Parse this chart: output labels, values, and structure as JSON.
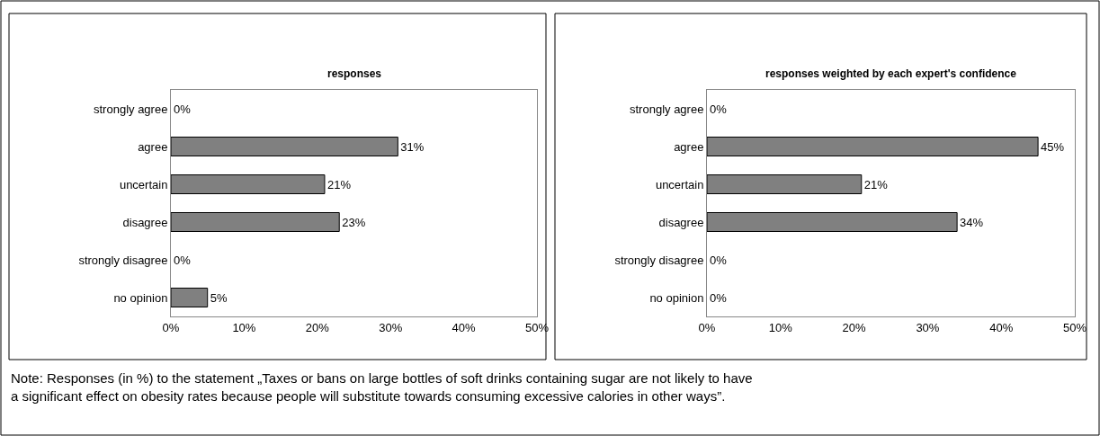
{
  "chart_data": [
    {
      "type": "bar",
      "orientation": "horizontal",
      "title": "responses",
      "categories": [
        "strongly agree",
        "agree",
        "uncertain",
        "disagree",
        "strongly disagree",
        "no opinion"
      ],
      "values": [
        0,
        31,
        21,
        23,
        0,
        5
      ],
      "value_labels": [
        "0%",
        "31%",
        "21%",
        "23%",
        "0%",
        "5%"
      ],
      "color": "#808080",
      "xlim": [
        0,
        50
      ],
      "xticks": [
        {
          "value": 0,
          "label": "0%"
        },
        {
          "value": 10,
          "label": "10%"
        },
        {
          "value": 20,
          "label": "20%"
        },
        {
          "value": 30,
          "label": "30%"
        },
        {
          "value": 40,
          "label": "40%"
        },
        {
          "value": 50,
          "label": "50%"
        }
      ],
      "annotations": [
        "Note: Responses (in %) to the statement „Taxes or bans on large bottles of soft drinks containing sugar are not likely to have a significant effect on obesity rates because people will substitute towards consuming excessive calories in other ways”."
      ]
    },
    {
      "type": "bar",
      "orientation": "horizontal",
      "title": "responses weighted by each expert's confidence",
      "categories": [
        "strongly agree",
        "agree",
        "uncertain",
        "disagree",
        "strongly disagree",
        "no opinion"
      ],
      "values": [
        0,
        45,
        21,
        34,
        0,
        0
      ],
      "value_labels": [
        "0%",
        "45%",
        "21%",
        "34%",
        "0%",
        "0%"
      ],
      "color": "#808080",
      "xlim": [
        0,
        50
      ],
      "xticks": [
        {
          "value": 0,
          "label": "0%"
        },
        {
          "value": 10,
          "label": "10%"
        },
        {
          "value": 20,
          "label": "20%"
        },
        {
          "value": 30,
          "label": "30%"
        },
        {
          "value": 40,
          "label": "40%"
        },
        {
          "value": 50,
          "label": "50%"
        }
      ]
    }
  ]
}
